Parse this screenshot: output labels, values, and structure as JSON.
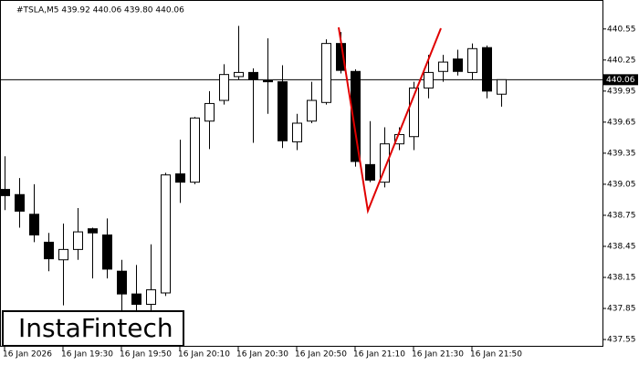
{
  "chart_data": {
    "type": "candlestick",
    "title": "#TSLA,M5  439.92 440.06 439.80 440.06",
    "brand": "InstaFintech",
    "categories": [
      "16 Jan 2026",
      null,
      null,
      null,
      "16 Jan 19:30",
      null,
      null,
      null,
      "16 Jan 19:50",
      null,
      null,
      null,
      "16 Jan 20:10",
      null,
      null,
      null,
      "16 Jan 20:30",
      null,
      null,
      null,
      "16 Jan 20:50",
      null,
      null,
      null,
      "16 Jan 21:10",
      null,
      null,
      null,
      "16 Jan 21:30",
      null,
      null,
      null,
      "16 Jan 21:50",
      null,
      null
    ],
    "open": [
      439.0,
      438.95,
      438.76,
      438.49,
      438.32,
      438.42,
      438.62,
      438.56,
      438.21,
      437.99,
      437.89,
      438.0,
      439.15,
      439.07,
      439.66,
      439.86,
      440.09,
      440.13,
      440.05,
      440.04,
      439.46,
      439.66,
      439.84,
      440.41,
      440.14,
      439.24,
      439.07,
      439.44,
      439.51,
      439.98,
      440.14,
      440.26,
      440.13,
      440.37,
      439.92
    ],
    "high": [
      439.32,
      439.11,
      439.05,
      438.58,
      438.67,
      438.82,
      438.63,
      438.72,
      438.32,
      438.27,
      438.47,
      439.16,
      439.48,
      439.7,
      439.95,
      440.21,
      440.58,
      440.17,
      440.46,
      440.2,
      439.73,
      440.04,
      440.45,
      440.52,
      440.16,
      439.66,
      439.6,
      439.6,
      440.04,
      440.3,
      440.3,
      440.35,
      440.41,
      440.39,
      440.06
    ],
    "low": [
      438.8,
      438.63,
      438.49,
      438.21,
      437.88,
      438.32,
      438.14,
      438.14,
      437.83,
      437.79,
      437.83,
      437.97,
      438.87,
      439.05,
      439.39,
      439.82,
      440.06,
      439.45,
      439.73,
      439.4,
      439.38,
      439.64,
      439.82,
      440.12,
      439.22,
      439.07,
      439.02,
      439.38,
      439.38,
      439.88,
      440.04,
      440.1,
      440.06,
      439.88,
      439.8
    ],
    "close": [
      438.94,
      438.79,
      438.56,
      438.33,
      438.42,
      438.59,
      438.58,
      438.23,
      437.99,
      437.89,
      438.03,
      439.14,
      439.07,
      439.69,
      439.83,
      440.11,
      440.13,
      440.06,
      440.04,
      439.47,
      439.64,
      439.86,
      440.41,
      440.15,
      439.27,
      439.09,
      439.44,
      439.53,
      439.98,
      440.13,
      440.23,
      440.14,
      440.36,
      439.95,
      440.06
    ],
    "up_color": "#ffffff",
    "down_color": "#000000",
    "last_price": 440.06,
    "ylim": [
      437.48,
      440.83
    ],
    "yticks": [
      437.55,
      437.85,
      438.15,
      438.45,
      438.75,
      439.05,
      439.35,
      439.65,
      439.95,
      440.25,
      440.55
    ]
  }
}
